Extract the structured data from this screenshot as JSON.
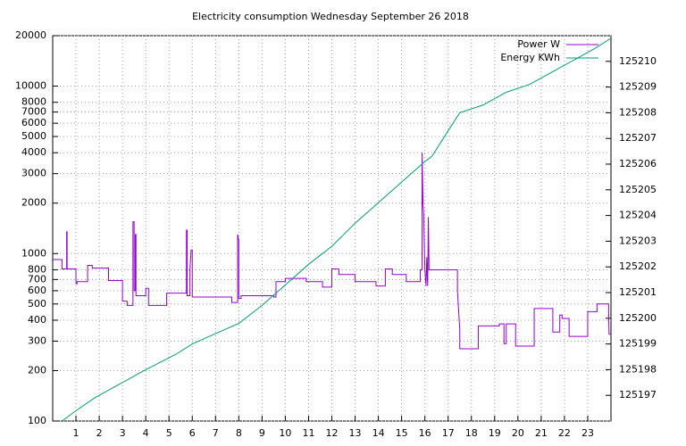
{
  "chart_data": {
    "type": "line",
    "title": "Electricity consumption Wednesday September 26 2018",
    "xlim": [
      0,
      24
    ],
    "xticks": [
      1,
      2,
      3,
      4,
      5,
      6,
      7,
      8,
      9,
      10,
      11,
      12,
      13,
      14,
      15,
      16,
      17,
      18,
      19,
      20,
      21,
      22,
      23
    ],
    "ylim": [
      100,
      20000
    ],
    "ylog": true,
    "yticks": [
      100,
      200,
      300,
      400,
      500,
      600,
      700,
      800,
      1000,
      2000,
      3000,
      4000,
      5000,
      6000,
      7000,
      8000,
      10000,
      20000
    ],
    "y2lim": [
      125196,
      125211
    ],
    "y2ticks": [
      125197,
      125198,
      125199,
      125200,
      125201,
      125202,
      125203,
      125204,
      125205,
      125206,
      125207,
      125208,
      125209,
      125210
    ],
    "grid": true,
    "legend": "top-right",
    "series": [
      {
        "name": "Power W",
        "color": "#9400d3",
        "x": [
          0,
          0.4,
          0.4,
          0.6,
          0.6,
          0.62,
          0.62,
          1.0,
          1.0,
          1.05,
          1.05,
          1.5,
          1.5,
          1.7,
          1.7,
          2.4,
          2.4,
          3.0,
          3.0,
          3.2,
          3.2,
          3.45,
          3.45,
          3.5,
          3.5,
          3.55,
          3.55,
          3.58,
          3.58,
          4.0,
          4.0,
          4.12,
          4.12,
          4.9,
          4.9,
          5.75,
          5.75,
          5.78,
          5.78,
          5.9,
          5.9,
          5.95,
          6.0,
          6.0,
          7.7,
          7.7,
          7.95,
          7.95,
          8.0,
          8.0,
          8.1,
          8.1,
          9.5,
          9.5,
          9.6,
          9.6,
          10.0,
          10.0,
          10.9,
          10.9,
          11.6,
          11.6,
          12.0,
          12.0,
          12.3,
          12.3,
          13.0,
          13.0,
          13.9,
          13.9,
          14.3,
          14.3,
          14.6,
          14.6,
          15.2,
          15.2,
          15.8,
          15.8,
          15.88,
          15.88,
          15.92,
          15.95,
          16.0,
          16.05,
          16.08,
          16.12,
          16.15,
          16.18,
          17.4,
          17.4,
          17.5,
          17.5,
          18.3,
          18.3,
          19.2,
          19.2,
          19.4,
          19.4,
          19.5,
          19.5,
          19.9,
          19.9,
          20.7,
          20.7,
          21.5,
          21.5,
          21.8,
          21.8,
          21.9,
          21.9,
          22.2,
          22.2,
          23.0,
          23.0,
          23.4,
          23.4,
          23.9,
          23.9,
          23.92,
          24
        ],
        "values": [
          920,
          920,
          810,
          810,
          1350,
          1350,
          810,
          810,
          660,
          660,
          680,
          680,
          850,
          850,
          820,
          820,
          690,
          690,
          520,
          520,
          490,
          490,
          1550,
          1550,
          600,
          600,
          1300,
          1300,
          560,
          560,
          620,
          620,
          490,
          490,
          580,
          580,
          1380,
          1380,
          560,
          560,
          800,
          1050,
          1050,
          550,
          550,
          510,
          510,
          1300,
          1200,
          540,
          540,
          560,
          560,
          550,
          550,
          680,
          680,
          710,
          710,
          680,
          680,
          630,
          630,
          810,
          810,
          750,
          750,
          680,
          680,
          640,
          640,
          810,
          810,
          750,
          750,
          680,
          680,
          800,
          800,
          4000,
          2000,
          1700,
          800,
          640,
          950,
          640,
          1650,
          800,
          800,
          600,
          350,
          270,
          270,
          370,
          370,
          380,
          380,
          290,
          290,
          380,
          380,
          280,
          280,
          470,
          470,
          340,
          340,
          430,
          430,
          410,
          410,
          320,
          320,
          450,
          450,
          500,
          500,
          420,
          330,
          330
        ]
      },
      {
        "name": "Energy KWh",
        "color": "#009e73",
        "axis": "y2",
        "x": [
          0.4,
          1,
          1.8,
          3,
          4,
          5.3,
          6,
          7,
          8,
          9,
          10,
          11,
          12,
          13,
          14,
          15,
          16,
          16.3,
          17,
          17.5,
          18.5,
          19.5,
          20.5,
          21.5,
          22.5,
          23.3,
          24
        ],
        "values": [
          125196,
          125196.4,
          125196.9,
          125197.5,
          125198.0,
          125198.6,
          125199.0,
          125199.4,
          125199.8,
          125200.5,
          125201.3,
          125202.1,
          125202.8,
          125203.7,
          125204.5,
          125205.3,
          125206.1,
          125206.3,
          125207.3,
          125208.0,
          125208.3,
          125208.8,
          125209.1,
          125209.6,
          125210.1,
          125210.5,
          125210.9
        ]
      }
    ]
  }
}
